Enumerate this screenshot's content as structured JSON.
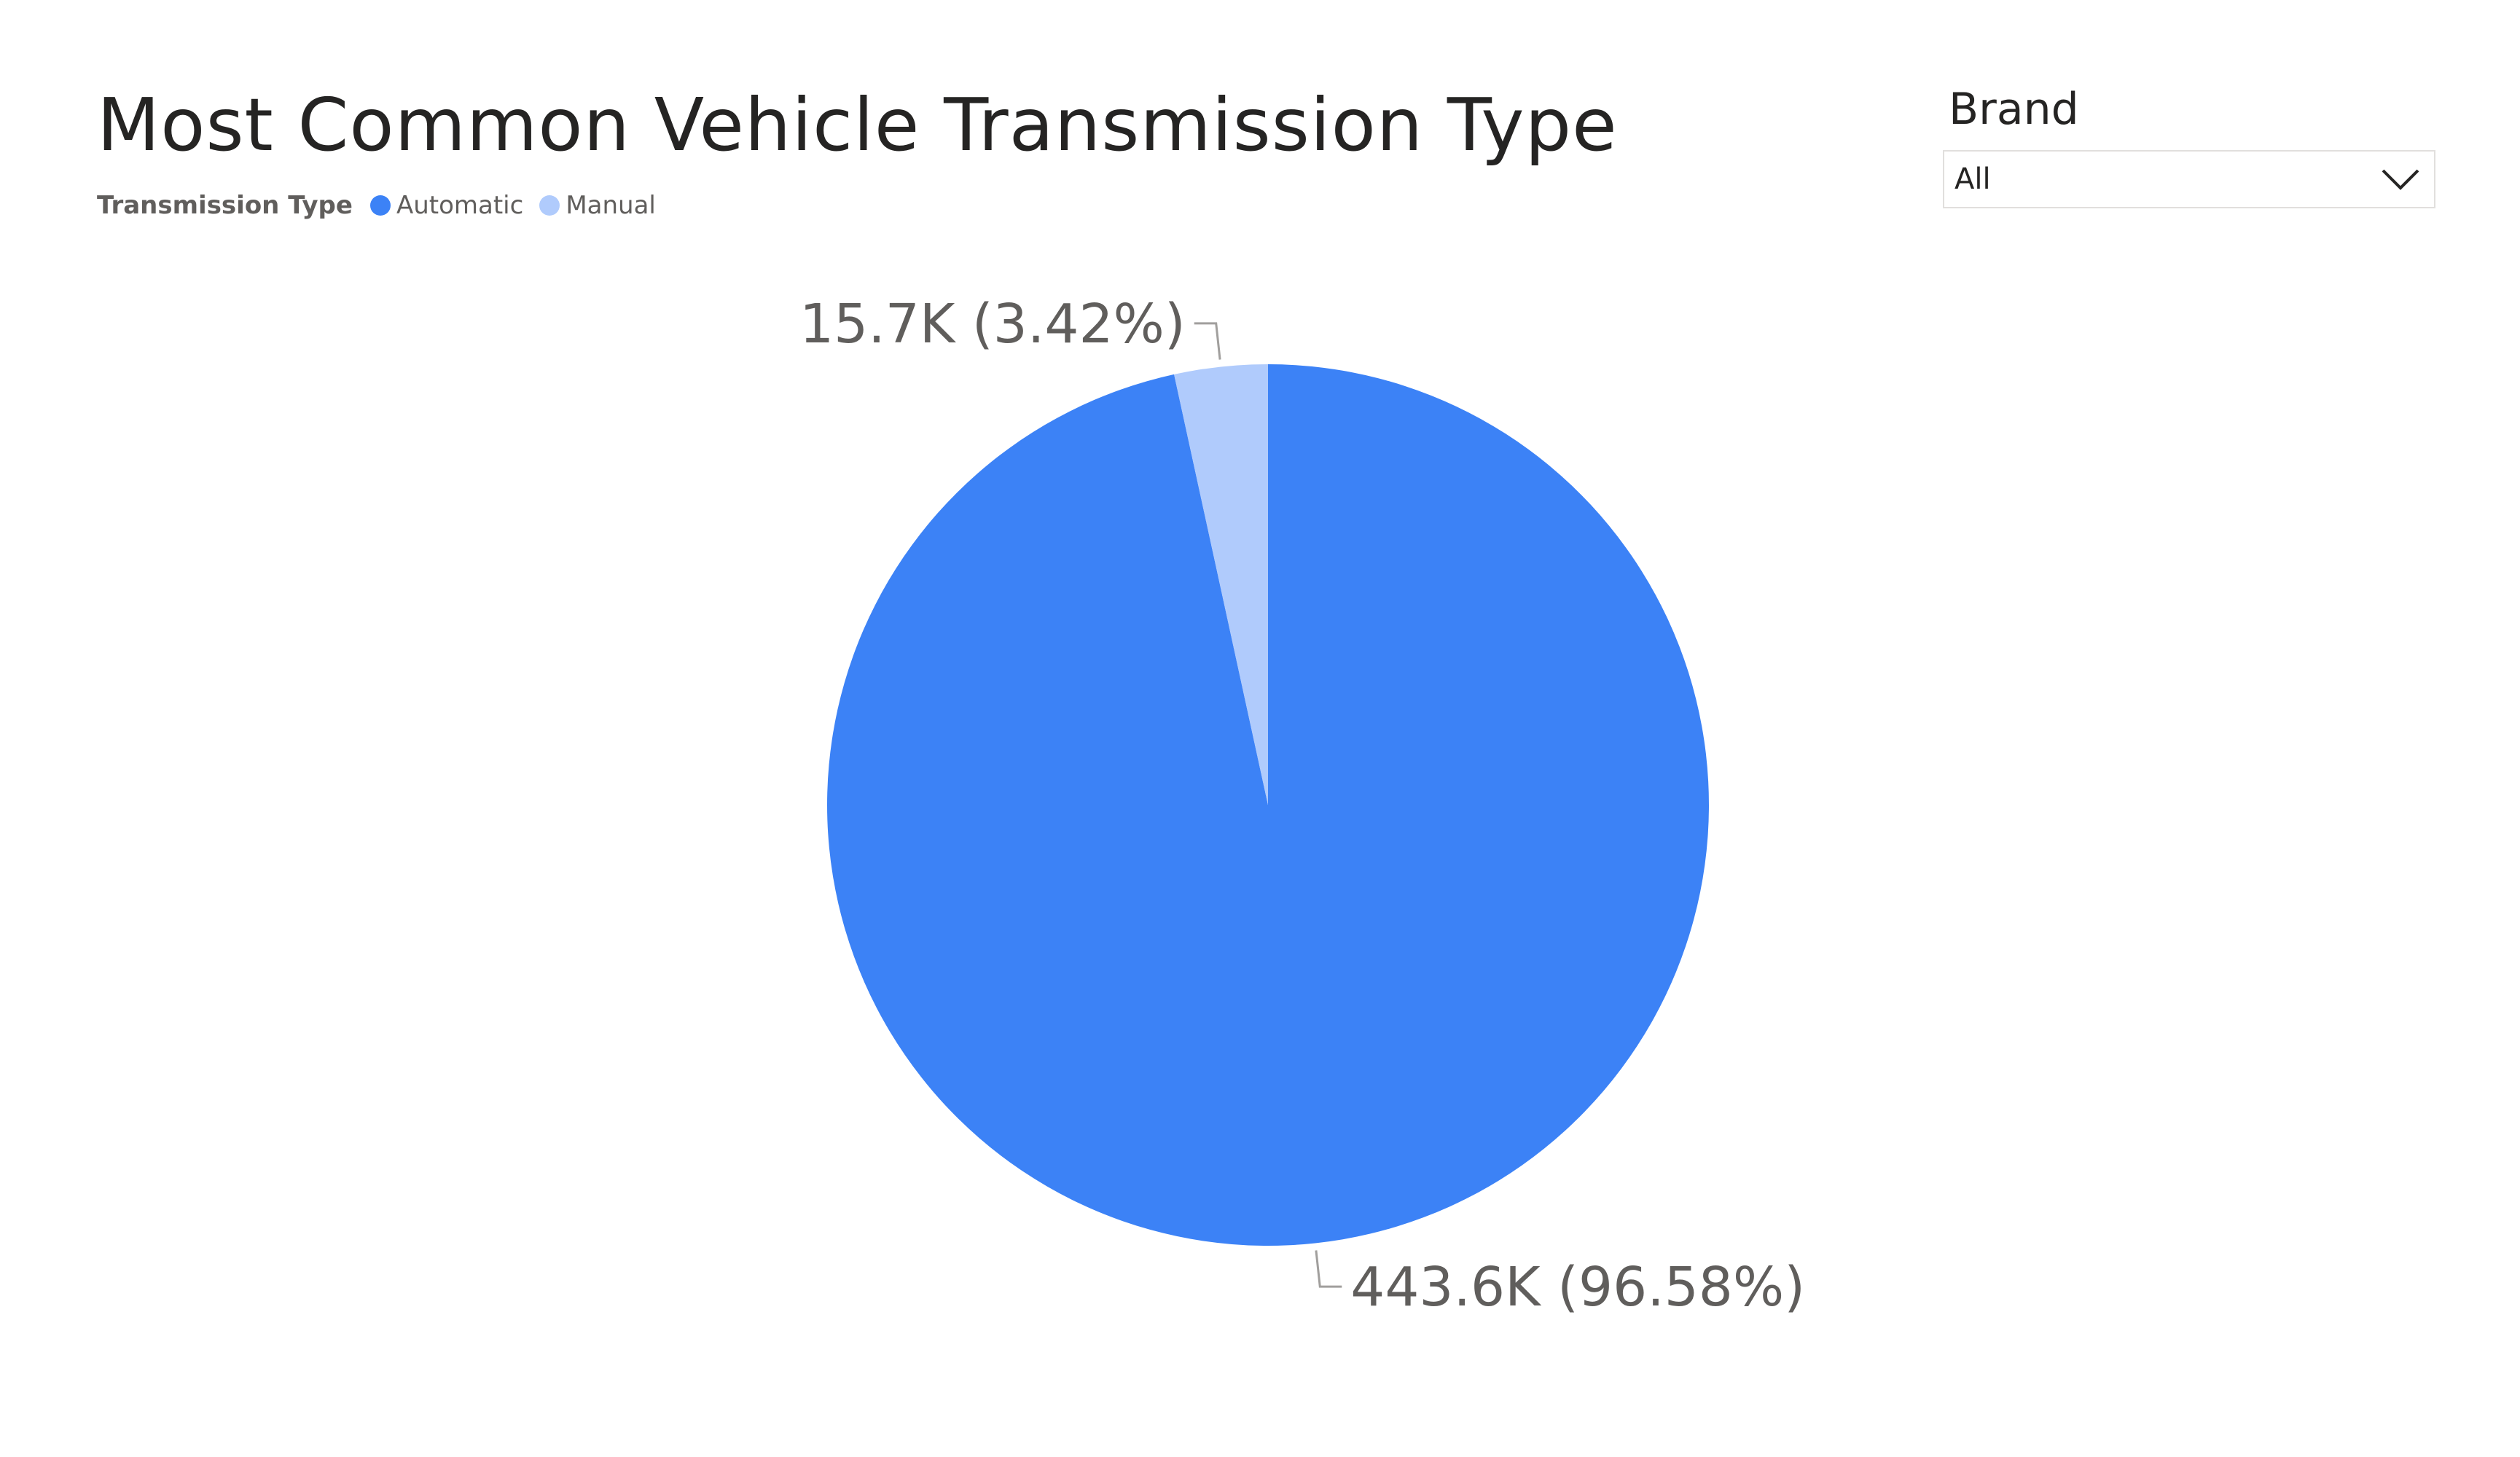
{
  "title": "Most Common Vehicle Transmission Type",
  "legend": {
    "title": "Transmission Type",
    "items": [
      {
        "label": "Automatic",
        "color": "#3c82f6"
      },
      {
        "label": "Manual",
        "color": "#b0cbfc"
      }
    ]
  },
  "slicer": {
    "title": "Brand",
    "value": "All",
    "icon": "chevron-down-icon"
  },
  "chart_data": {
    "type": "pie",
    "title": "Most Common Vehicle Transmission Type",
    "legend_title": "Transmission Type",
    "legend_position": "top-left",
    "slices": [
      {
        "name": "Automatic",
        "value": 443.6,
        "percent": 96.58,
        "label": "443.6K (96.58%)",
        "color": "#3c82f6"
      },
      {
        "name": "Manual",
        "value": 15.7,
        "percent": 3.42,
        "label": "15.7K (3.42%)",
        "color": "#b0cbfc"
      }
    ]
  }
}
